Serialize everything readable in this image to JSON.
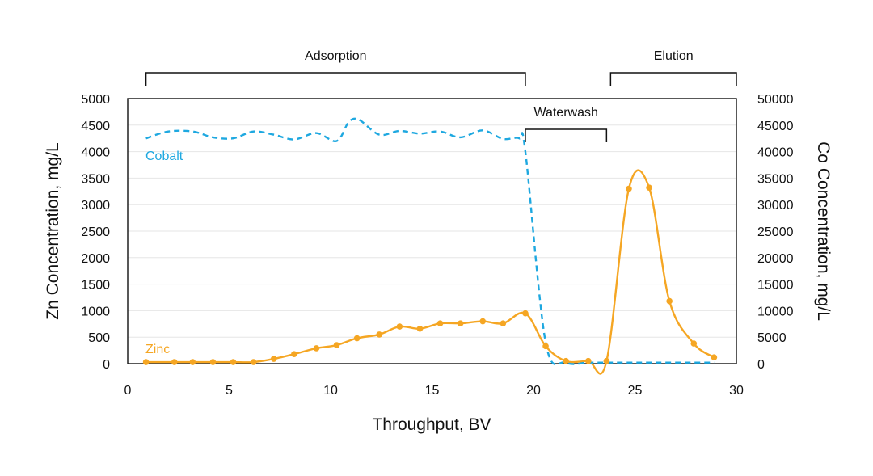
{
  "chart_data": {
    "type": "line",
    "title": "",
    "xlabel": "Throughput, BV",
    "ylabel_left": "Zn Concentration, mg/L",
    "ylabel_right": "Co Concentration, mg/L",
    "xlim": [
      0,
      30
    ],
    "ylim_left": [
      0,
      5000
    ],
    "ylim_right": [
      0,
      50000
    ],
    "x_ticks": [
      "0",
      "5",
      "10",
      "15",
      "20",
      "25",
      "30"
    ],
    "y_left_ticks": [
      "0",
      "500",
      "1000",
      "1500",
      "2000",
      "2500",
      "3000",
      "3500",
      "4000",
      "4500",
      "5000"
    ],
    "y_right_ticks": [
      "0",
      "5000",
      "10000",
      "15000",
      "20000",
      "25000",
      "30000",
      "35000",
      "40000",
      "45000",
      "50000"
    ],
    "grid": true,
    "colors": {
      "zinc": "#f5a623",
      "cobalt": "#1ea8e0",
      "axis": "#111111",
      "grid": "#e6e6e6"
    },
    "phases": [
      {
        "label": "Adsorption",
        "x_start": 0.9,
        "x_end": 19.6,
        "level": "top"
      },
      {
        "label": "Waterwash",
        "x_start": 19.6,
        "x_end": 23.6,
        "level": "inner"
      },
      {
        "label": "Elution",
        "x_start": 23.8,
        "x_end": 30.0,
        "level": "top"
      }
    ],
    "series": [
      {
        "name": "Zinc",
        "axis": "left",
        "style": "solid-markers",
        "label_position": "bottom-left",
        "x": [
          0.9,
          2.3,
          3.2,
          4.2,
          5.2,
          6.2,
          7.2,
          8.2,
          9.3,
          10.3,
          11.3,
          12.4,
          13.4,
          14.4,
          15.4,
          16.4,
          17.5,
          18.5,
          19.6,
          20.6,
          21.6,
          22.7,
          23.6,
          24.7,
          25.7,
          26.7,
          27.9,
          28.9
        ],
        "values": [
          30,
          30,
          30,
          30,
          30,
          30,
          90,
          180,
          290,
          350,
          480,
          550,
          700,
          660,
          760,
          760,
          800,
          760,
          950,
          330,
          50,
          50,
          50,
          3300,
          3320,
          1180,
          380,
          120
        ]
      },
      {
        "name": "Cobalt",
        "axis": "right",
        "style": "dashed",
        "label_position": "top-left",
        "x": [
          0.9,
          2.0,
          3.2,
          4.2,
          5.2,
          6.2,
          7.2,
          8.2,
          9.3,
          10.3,
          10.9,
          11.4,
          12.4,
          13.4,
          14.4,
          15.4,
          16.4,
          17.5,
          18.5,
          19.3,
          19.6,
          20.6,
          21.6,
          22.7,
          23.6,
          24.7,
          25.7,
          26.7,
          27.9,
          28.9
        ],
        "values": [
          42500,
          43800,
          43800,
          42700,
          42500,
          43800,
          43200,
          42300,
          43500,
          42000,
          45600,
          46000,
          43200,
          43900,
          43400,
          43800,
          42700,
          44000,
          42400,
          42500,
          40000,
          4000,
          200,
          200,
          200,
          200,
          200,
          200,
          200,
          200
        ]
      }
    ]
  }
}
